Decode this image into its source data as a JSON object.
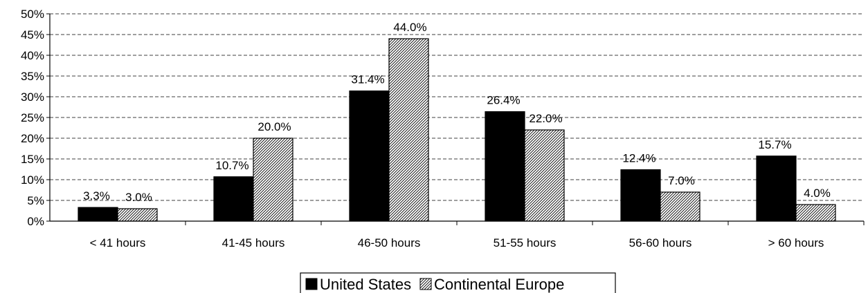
{
  "chart_data": {
    "type": "bar",
    "categories": [
      "< 41 hours",
      "41-45 hours",
      "46-50 hours",
      "51-55 hours",
      "56-60 hours",
      "> 60 hours"
    ],
    "series": [
      {
        "name": "United States",
        "values": [
          3.3,
          10.7,
          31.4,
          26.4,
          12.4,
          15.7
        ],
        "labels": [
          "3.3%",
          "10.7%",
          "31.4%",
          "26.4%",
          "12.4%",
          "15.7%"
        ],
        "color": "#000000",
        "pattern": "solid"
      },
      {
        "name": "Continental Europe",
        "values": [
          3.0,
          20.0,
          44.0,
          22.0,
          7.0,
          4.0
        ],
        "labels": [
          "3.0%",
          "20.0%",
          "44.0%",
          "22.0%",
          "7.0%",
          "4.0%"
        ],
        "color": "#ffffff",
        "pattern": "diagonal-hatch"
      }
    ],
    "yticks": [
      "0%",
      "5%",
      "10%",
      "15%",
      "20%",
      "25%",
      "30%",
      "35%",
      "40%",
      "45%",
      "50%"
    ],
    "ylim": [
      0,
      50
    ],
    "grid": "horizontal-dashed",
    "legend": "bottom-center"
  }
}
